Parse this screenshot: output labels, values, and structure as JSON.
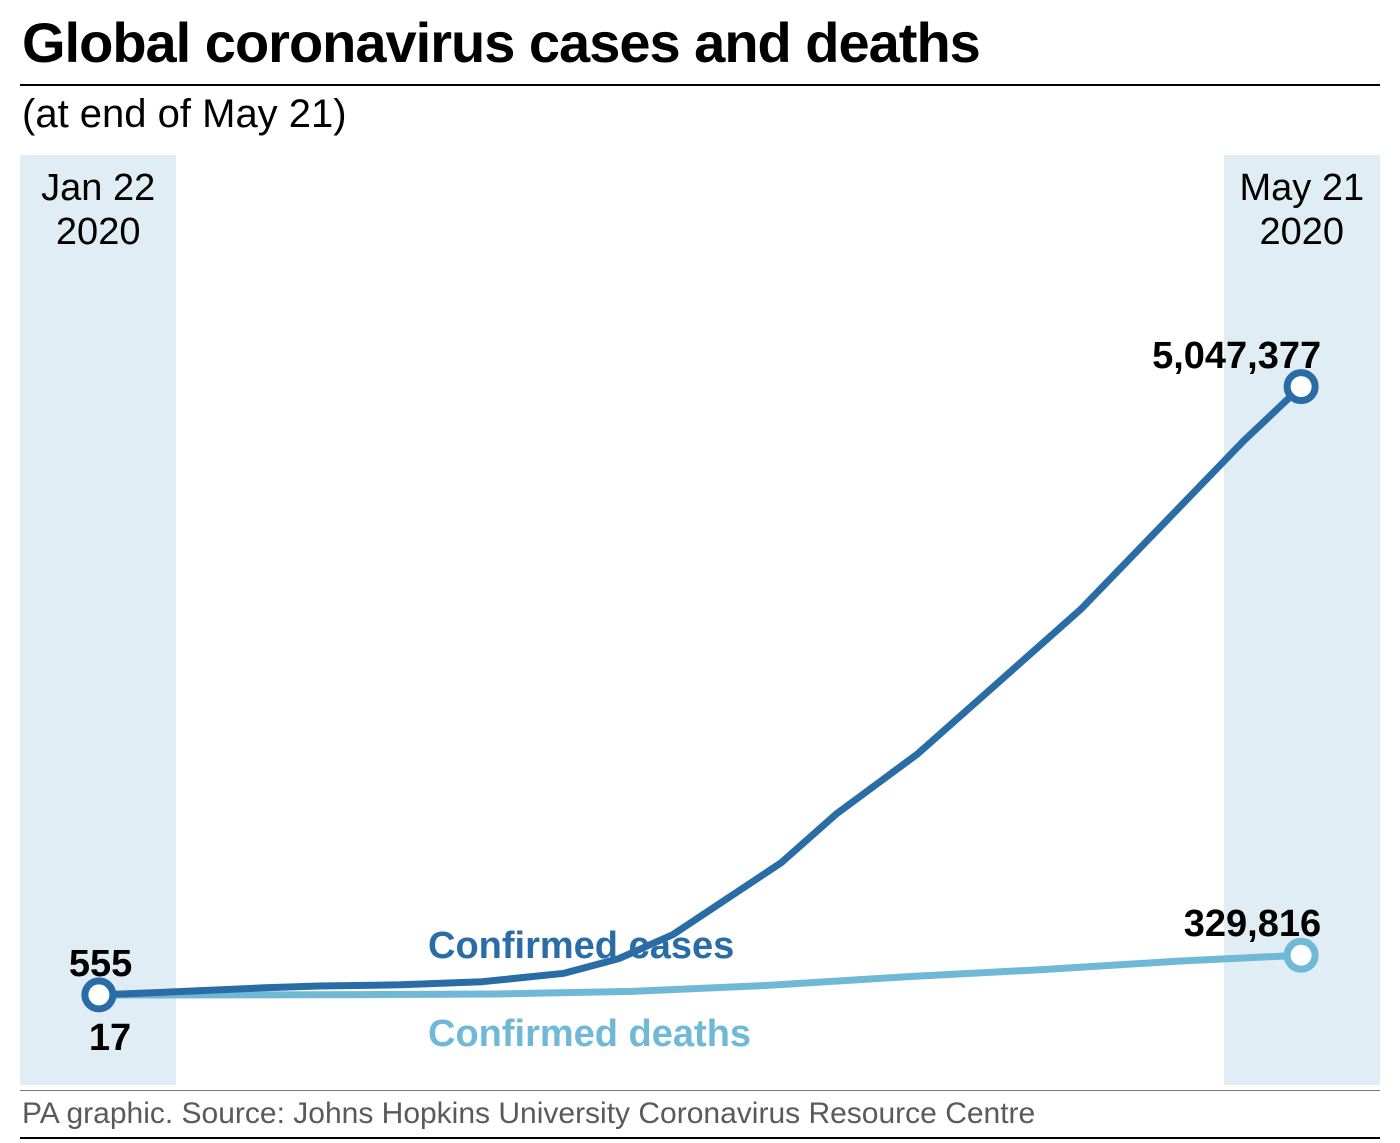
{
  "title": "Global coronavirus cases and deaths",
  "subtitle": "(at end of May 21)",
  "footer": "PA graphic. Source: Johns Hopkins University Coronavirus Resource Centre",
  "chart": {
    "type": "line",
    "background_color": "#ffffff",
    "band_color": "#e0edf4",
    "band_width_left_pct": 11.5,
    "band_width_right_pct": 11.5,
    "date_start": "Jan 22\n2020",
    "date_end": "May 21\n2020",
    "y_min": 0,
    "y_max": 5600000,
    "marker_radius": 14,
    "line_width": 7,
    "series": {
      "cases": {
        "label": "Confirmed cases",
        "color": "#2a6ca6",
        "start_value_label": "555",
        "end_value_label": "5,047,377",
        "label_fontsize": 38,
        "points": [
          {
            "x": 0.058,
            "y": 555
          },
          {
            "x": 0.1,
            "y": 20000
          },
          {
            "x": 0.18,
            "y": 60000
          },
          {
            "x": 0.22,
            "y": 75000
          },
          {
            "x": 0.28,
            "y": 85000
          },
          {
            "x": 0.34,
            "y": 110000
          },
          {
            "x": 0.4,
            "y": 180000
          },
          {
            "x": 0.44,
            "y": 300000
          },
          {
            "x": 0.48,
            "y": 500000
          },
          {
            "x": 0.52,
            "y": 800000
          },
          {
            "x": 0.56,
            "y": 1100000
          },
          {
            "x": 0.6,
            "y": 1500000
          },
          {
            "x": 0.66,
            "y": 2000000
          },
          {
            "x": 0.72,
            "y": 2600000
          },
          {
            "x": 0.78,
            "y": 3200000
          },
          {
            "x": 0.84,
            "y": 3900000
          },
          {
            "x": 0.9,
            "y": 4600000
          },
          {
            "x": 0.942,
            "y": 5047377
          }
        ]
      },
      "deaths": {
        "label": "Confirmed deaths",
        "color": "#6fb8d6",
        "start_value_label": "17",
        "end_value_label": "329,816",
        "label_fontsize": 38,
        "points": [
          {
            "x": 0.058,
            "y": 17
          },
          {
            "x": 0.15,
            "y": 1000
          },
          {
            "x": 0.25,
            "y": 3000
          },
          {
            "x": 0.35,
            "y": 8000
          },
          {
            "x": 0.45,
            "y": 30000
          },
          {
            "x": 0.55,
            "y": 80000
          },
          {
            "x": 0.65,
            "y": 150000
          },
          {
            "x": 0.75,
            "y": 210000
          },
          {
            "x": 0.85,
            "y": 280000
          },
          {
            "x": 0.942,
            "y": 329816
          }
        ]
      }
    }
  }
}
